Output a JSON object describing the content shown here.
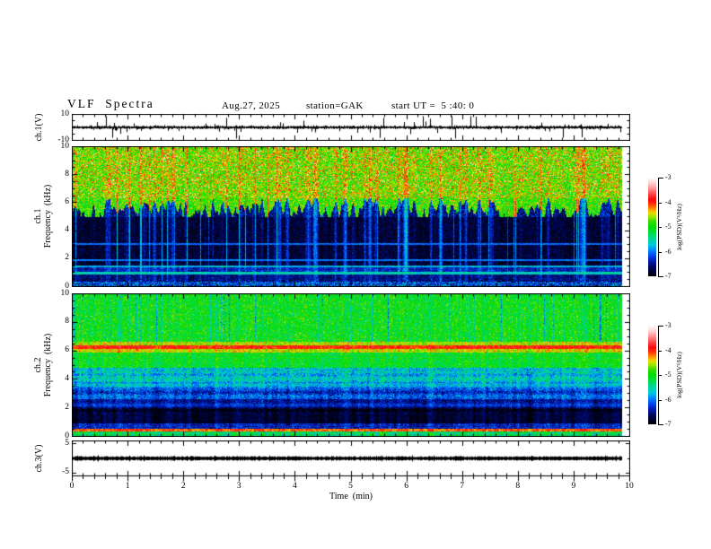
{
  "header": {
    "title": "VLF  Spectra",
    "date": "Aug.27, 2025",
    "station": "station=GAK",
    "start_ut": "start UT =  5 :40: 0"
  },
  "axes": {
    "time": {
      "label": "Time  (min)",
      "tick_labels": [
        "0",
        "1",
        "2",
        "3",
        "4",
        "5",
        "6",
        "7",
        "8",
        "9",
        "10"
      ],
      "range_min": [
        0,
        10
      ],
      "minor_step_min": 0.2
    },
    "ch1_wave": {
      "label": "ch.1(V)",
      "ticks": [
        {
          "v": 10,
          "t": "10"
        },
        {
          "v": -10,
          "t": "-10"
        }
      ],
      "y_range": [
        -10,
        10
      ]
    },
    "ch1_spec": {
      "label_ch": "ch.1",
      "label_freq": "Frequency  (kHz)",
      "ticks": [
        {
          "v": 10,
          "t": "10"
        },
        {
          "v": 8,
          "t": "8"
        },
        {
          "v": 6,
          "t": "6"
        },
        {
          "v": 4,
          "t": "4"
        },
        {
          "v": 2,
          "t": "2"
        },
        {
          "v": 0,
          "t": "0"
        }
      ],
      "y_range_kHz": [
        0,
        10
      ]
    },
    "ch2_spec": {
      "label_ch": "ch.2",
      "label_freq": "Frequency  (kHz)",
      "ticks": [
        {
          "v": 10,
          "t": "10"
        },
        {
          "v": 8,
          "t": "8"
        },
        {
          "v": 6,
          "t": "6"
        },
        {
          "v": 4,
          "t": "4"
        },
        {
          "v": 2,
          "t": "2"
        },
        {
          "v": 0,
          "t": "0"
        }
      ],
      "y_range_kHz": [
        0,
        10
      ]
    },
    "ch3_wave": {
      "label": "ch.3(V)",
      "ticks": [
        {
          "v": 5,
          "t": "5"
        },
        {
          "v": -5,
          "t": "-5"
        }
      ],
      "y_range": [
        -5,
        5
      ]
    }
  },
  "colorbar": {
    "label": "log(PSD)(V²/Hz)",
    "tick_labels": [
      "-3",
      "-4",
      "-5",
      "-6",
      "-7"
    ],
    "vmax": -3,
    "vmin": -7
  },
  "colormap": {
    "range": [
      -7,
      -3
    ],
    "anchors": [
      [
        0.0,
        "#000000"
      ],
      [
        0.08,
        "#000550"
      ],
      [
        0.14,
        "#0014a0"
      ],
      [
        0.2,
        "#003ce6"
      ],
      [
        0.26,
        "#0082ff"
      ],
      [
        0.32,
        "#00c8dc"
      ],
      [
        0.38,
        "#00d796"
      ],
      [
        0.44,
        "#00dc46"
      ],
      [
        0.5,
        "#00dc00"
      ],
      [
        0.56,
        "#3cdc00"
      ],
      [
        0.6,
        "#96e600"
      ],
      [
        0.64,
        "#e6dc00"
      ],
      [
        0.67,
        "#ffaa00"
      ],
      [
        0.7,
        "#ff6e00"
      ],
      [
        0.74,
        "#ff280a"
      ],
      [
        0.78,
        "#f50a0a"
      ],
      [
        0.84,
        "#ff5050"
      ],
      [
        0.9,
        "#ffa0a0"
      ],
      [
        0.95,
        "#ffd7d7"
      ],
      [
        1.0,
        "#ffffff"
      ]
    ]
  },
  "chart_data": [
    {
      "panel": "ch1-waveform",
      "type": "line",
      "ylabel": "ch.1(V)",
      "y_range_V": [
        -10,
        10
      ],
      "x_range_min": [
        0,
        10
      ],
      "data_end_min": 9.85,
      "description": "Broadband noisy voltage trace centred on 0 V (band about ±1.5 V thick) with frequent impulsive spikes reaching roughly ±8 V"
    },
    {
      "panel": "ch1-spectrogram",
      "type": "heatmap",
      "ylabel": "ch.1 Frequency (kHz)",
      "x_range_min": [
        0,
        10
      ],
      "y_range_kHz": [
        0,
        10
      ],
      "z_label": "log(PSD)(V²/Hz)",
      "z_range": [
        -7,
        -3
      ],
      "data_end_min": 9.85,
      "col_all": 0.15,
      "bands": [
        {
          "f": [
            6.3,
            10.01
          ],
          "base": -4.65,
          "jitter": 0.5,
          "col": 0.45,
          "specks": 0.05
        },
        {
          "f": [
            5.0,
            6.3
          ],
          "ragged": {
            "mid": 5.55,
            "amp": 1.5,
            "hi": -4.8,
            "lo": -6.55
          },
          "jitter": 0.45,
          "streak": 1.0
        },
        {
          "f": [
            1.5,
            5.0
          ],
          "base": -6.75,
          "jitter": 0.22,
          "streak": 1.1
        },
        {
          "f": [
            1.38,
            1.5
          ],
          "base": -5.75,
          "jitter": 0.25
        },
        {
          "f": [
            1.08,
            1.38
          ],
          "base": -6.35,
          "jitter": 0.3,
          "streak": 0.5
        },
        {
          "f": [
            0.88,
            1.08
          ],
          "base": -5.6,
          "jitter": 0.25
        },
        {
          "f": [
            0.4,
            0.88
          ],
          "base": -6.55,
          "jitter": 0.3,
          "streak": 0.4
        },
        {
          "f": [
            0.0,
            0.4
          ],
          "base": -6.15,
          "jitter": 0.55
        }
      ],
      "hlines": [
        {
          "f": 1.9,
          "hw": 0.06,
          "level": -6.0
        },
        {
          "f": 3.05,
          "hw": 0.06,
          "level": -6.05
        }
      ],
      "description": "Green/yellow broadband hiss above ~5.5 kHz with red impulsive streaks; mostly black 1.5-5 kHz with blue vertical sferic streaks; cyan horizontal bands near 0.9-1.5 kHz"
    },
    {
      "panel": "ch2-spectrogram",
      "type": "heatmap",
      "ylabel": "ch.2 Frequency (kHz)",
      "x_range_min": [
        0,
        10
      ],
      "y_range_kHz": [
        0,
        10
      ],
      "z_label": "log(PSD)(V²/Hz)",
      "z_range": [
        -7,
        -3
      ],
      "data_end_min": 9.85,
      "col_all": 0.3,
      "bands": [
        {
          "f": [
            6.6,
            10.01
          ],
          "base": -5.0,
          "jitter": 0.4,
          "col": -0.85
        },
        {
          "f": [
            6.38,
            6.6
          ],
          "base": -4.55,
          "jitter": 0.3
        },
        {
          "f": [
            6.12,
            6.38
          ],
          "base": -3.95,
          "jitter": 0.2
        },
        {
          "f": [
            5.85,
            6.12
          ],
          "base": -4.5,
          "jitter": 0.3
        },
        {
          "f": [
            4.8,
            5.85
          ],
          "base": -5.1,
          "jitter": 0.35
        },
        {
          "f": [
            3.8,
            4.8
          ],
          "base": -5.7,
          "jitter": 0.4,
          "rows": 0.25
        },
        {
          "f": [
            2.6,
            3.8
          ],
          "base": -6.05,
          "jitter": 0.35,
          "rows": 0.3
        },
        {
          "f": [
            1.6,
            2.6
          ],
          "base": -6.45,
          "jitter": 0.25,
          "rows": 0.35
        },
        {
          "f": [
            0.95,
            1.6
          ],
          "base": -6.8,
          "jitter": 0.18
        },
        {
          "f": [
            0.55,
            0.95
          ],
          "base": -6.35,
          "jitter": 0.3
        },
        {
          "f": [
            0.38,
            0.55
          ],
          "base": -4.15,
          "jitter": 0.25
        },
        {
          "f": [
            0.0,
            0.38
          ],
          "base": -5.3,
          "jitter": 0.45
        }
      ],
      "hlines": [],
      "description": "Green hiss 6.6-10 kHz with dark vertical streaks; intense orange/red line near 6.25 kHz; green 5-6 kHz; cyan/blue speckle 2.6-4.8 kHz; dark blue banding 1.6-2.6 kHz; near-black 1-1.6 kHz; thin red line near 0.45 kHz; green speckle at bottom"
    },
    {
      "panel": "ch3-waveform",
      "type": "line",
      "ylabel": "ch.3(V)",
      "y_range_V": [
        -5,
        5
      ],
      "x_range_min": [
        0,
        10
      ],
      "data_end_min": 9.85,
      "description": "Flat trace: dense black band at 0 V, roughly ±0.5 V thick, constant for the whole record"
    }
  ]
}
